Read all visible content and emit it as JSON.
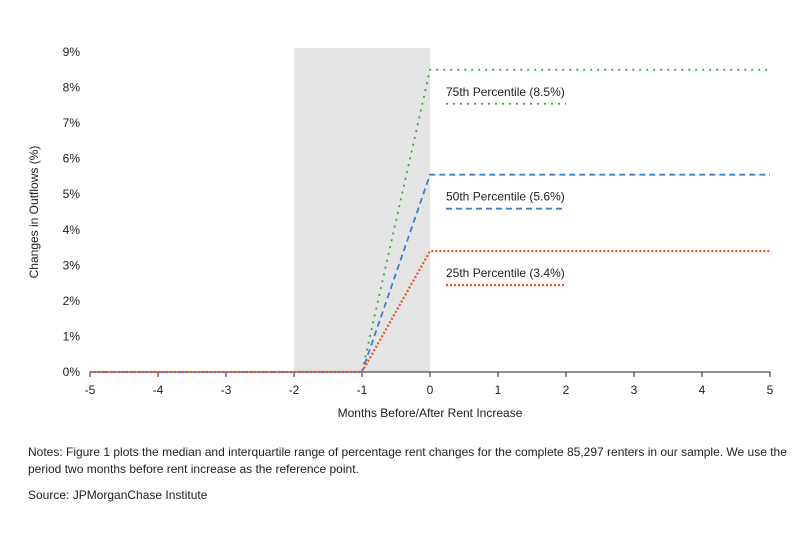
{
  "chart_data": {
    "type": "line",
    "xlabel": "Months Before/After Rent Increase",
    "ylabel": "Changes in Outflows (%)",
    "xlim": [
      -5,
      5
    ],
    "ylim": [
      0,
      9
    ],
    "x_ticks": [
      -5,
      -4,
      -3,
      -2,
      -1,
      0,
      1,
      2,
      3,
      4,
      5
    ],
    "y_ticks": [
      "0%",
      "1%",
      "2%",
      "3%",
      "4%",
      "5%",
      "6%",
      "7%",
      "8%",
      "9%"
    ],
    "shaded_region": [
      -2,
      0
    ],
    "grid": false,
    "series": [
      {
        "name": "75th Percentile (8.5%)",
        "color": "#3aa83a",
        "style": "dotted",
        "x": [
          -5,
          -4,
          -3,
          -2,
          -1,
          0,
          1,
          2,
          3,
          4,
          5
        ],
        "values": [
          0,
          0,
          0,
          0,
          0,
          8.5,
          8.5,
          8.5,
          8.5,
          8.5,
          8.5
        ]
      },
      {
        "name": "50th Percentile (5.6%)",
        "color": "#3b7fd0",
        "style": "dashed",
        "x": [
          -5,
          -4,
          -3,
          -2,
          -1,
          0,
          1,
          2,
          3,
          4,
          5
        ],
        "values": [
          0,
          0,
          0,
          0,
          0,
          5.55,
          5.55,
          5.55,
          5.55,
          5.55,
          5.55
        ]
      },
      {
        "name": "25th Percentile (3.4%)",
        "color": "#e8572a",
        "style": "dotted-dense",
        "x": [
          -5,
          -4,
          -3,
          -2,
          -1,
          0,
          1,
          2,
          3,
          4,
          5
        ],
        "values": [
          0,
          0,
          0,
          0,
          0,
          3.4,
          3.4,
          3.4,
          3.4,
          3.4,
          3.4
        ]
      }
    ]
  },
  "notes": "Notes: Figure 1 plots the median and interquartile range of percentage rent changes for the complete 85,297 renters in our sample. We use the period two months before rent increase as the reference point.",
  "source": "Source: JPMorganChase Institute"
}
